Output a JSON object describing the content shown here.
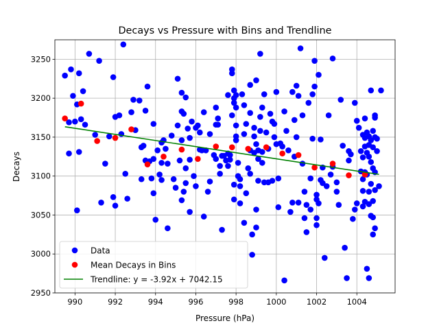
{
  "chart_data": {
    "type": "scatter",
    "title": "Decays vs Pressure with Bins and Trendline",
    "xlabel": "Pressure (hPa)",
    "ylabel": "Decays",
    "xlim": [
      989.0,
      1005.9
    ],
    "ylim": [
      2950,
      3275
    ],
    "x_ticks": [
      990,
      992,
      994,
      996,
      998,
      1000,
      1002,
      1004
    ],
    "y_ticks": [
      2950,
      3000,
      3050,
      3100,
      3150,
      3200,
      3250
    ],
    "grid": true,
    "legend_position": "lower-left",
    "legend": [
      "Data",
      "Mean Decays in Bins",
      "Trendline: y = -3.92x + 7042.15"
    ],
    "colors": {
      "data": "#0000ff",
      "bins": "#ff0000",
      "trend": "#008000"
    },
    "series": [
      {
        "name": "Data",
        "kind": "scatter",
        "points": [
          [
            989.5,
            3229
          ],
          [
            989.7,
            3169
          ],
          [
            989.7,
            3129
          ],
          [
            989.8,
            3237
          ],
          [
            989.9,
            3203
          ],
          [
            990.0,
            3170
          ],
          [
            990.1,
            3056
          ],
          [
            990.1,
            3192
          ],
          [
            990.2,
            3131
          ],
          [
            990.2,
            3232
          ],
          [
            990.3,
            3173
          ],
          [
            990.4,
            3209
          ],
          [
            990.5,
            3166
          ],
          [
            990.7,
            3257
          ],
          [
            991.0,
            3153
          ],
          [
            991.2,
            3248
          ],
          [
            991.3,
            3066
          ],
          [
            991.5,
            3116
          ],
          [
            991.7,
            3151
          ],
          [
            991.9,
            3227
          ],
          [
            991.9,
            3073
          ],
          [
            992.0,
            3176
          ],
          [
            992.0,
            3062
          ],
          [
            992.2,
            3178
          ],
          [
            992.3,
            3154
          ],
          [
            992.4,
            3269
          ],
          [
            992.5,
            3103
          ],
          [
            992.6,
            3071
          ],
          [
            992.8,
            3182
          ],
          [
            992.9,
            3198
          ],
          [
            993.0,
            3159
          ],
          [
            993.2,
            3197
          ],
          [
            993.3,
            3096
          ],
          [
            993.3,
            3137
          ],
          [
            993.4,
            3139
          ],
          [
            993.5,
            3120
          ],
          [
            993.5,
            3184
          ],
          [
            993.6,
            3215
          ],
          [
            993.7,
            3119
          ],
          [
            993.8,
            3097
          ],
          [
            993.9,
            3122
          ],
          [
            993.9,
            3167
          ],
          [
            993.9,
            3078
          ],
          [
            994.0,
            3044
          ],
          [
            994.1,
            3133
          ],
          [
            994.2,
            3102
          ],
          [
            994.3,
            3095
          ],
          [
            994.3,
            3117
          ],
          [
            994.3,
            3143
          ],
          [
            994.4,
            3146
          ],
          [
            994.5,
            3135
          ],
          [
            994.6,
            3116
          ],
          [
            994.6,
            3033
          ],
          [
            994.8,
            3152
          ],
          [
            994.9,
            3096
          ],
          [
            995.0,
            3085
          ],
          [
            995.1,
            3225
          ],
          [
            995.1,
            3165
          ],
          [
            995.2,
            3120
          ],
          [
            995.3,
            3207
          ],
          [
            995.3,
            3146
          ],
          [
            995.3,
            3183
          ],
          [
            995.3,
            3069
          ],
          [
            995.4,
            3080
          ],
          [
            995.4,
            3180
          ],
          [
            995.5,
            3201
          ],
          [
            995.5,
            3110
          ],
          [
            995.5,
            3091
          ],
          [
            995.6,
            3161
          ],
          [
            995.7,
            3054
          ],
          [
            995.7,
            3121
          ],
          [
            995.7,
            3149
          ],
          [
            995.8,
            3170
          ],
          [
            995.9,
            3100
          ],
          [
            996.0,
            3087
          ],
          [
            996.0,
            3162
          ],
          [
            996.1,
            3165
          ],
          [
            996.2,
            3156
          ],
          [
            996.2,
            3134
          ],
          [
            996.3,
            3133
          ],
          [
            996.4,
            3048
          ],
          [
            996.4,
            3182
          ],
          [
            996.5,
            3133
          ],
          [
            996.6,
            3080
          ],
          [
            996.7,
            3154
          ],
          [
            996.7,
            3093
          ],
          [
            996.9,
            3127
          ],
          [
            997.0,
            3122
          ],
          [
            997.0,
            3166
          ],
          [
            997.0,
            3188
          ],
          [
            997.1,
            3174
          ],
          [
            997.1,
            3166
          ],
          [
            997.2,
            3113
          ],
          [
            997.2,
            3103
          ],
          [
            997.3,
            3126
          ],
          [
            997.3,
            3031
          ],
          [
            997.4,
            3126
          ],
          [
            997.5,
            3120
          ],
          [
            997.6,
            3113
          ],
          [
            997.6,
            3204
          ],
          [
            997.6,
            3129
          ],
          [
            997.7,
            3121
          ],
          [
            997.7,
            3127
          ],
          [
            997.8,
            3178
          ],
          [
            997.8,
            3237
          ],
          [
            997.8,
            3232
          ],
          [
            997.9,
            3210
          ],
          [
            997.9,
            3200
          ],
          [
            997.9,
            3194
          ],
          [
            997.9,
            3089
          ],
          [
            997.9,
            3070
          ],
          [
            998.0,
            3146
          ],
          [
            998.0,
            3204
          ],
          [
            998.0,
            3188
          ],
          [
            998.0,
            3165
          ],
          [
            998.0,
            3151
          ],
          [
            998.1,
            3117
          ],
          [
            998.1,
            3100
          ],
          [
            998.2,
            3087
          ],
          [
            998.2,
            3096
          ],
          [
            998.2,
            3065
          ],
          [
            998.3,
            3205
          ],
          [
            998.4,
            3191
          ],
          [
            998.4,
            3154
          ],
          [
            998.4,
            3040
          ],
          [
            998.5,
            3078
          ],
          [
            998.5,
            3167
          ],
          [
            998.6,
            3110
          ],
          [
            998.7,
            3133
          ],
          [
            998.7,
            3217
          ],
          [
            998.7,
            3181
          ],
          [
            998.7,
            3103
          ],
          [
            998.8,
            3025
          ],
          [
            998.8,
            2999
          ],
          [
            998.9,
            3151
          ],
          [
            998.9,
            3130
          ],
          [
            998.9,
            3162
          ],
          [
            999.0,
            3223
          ],
          [
            999.0,
            3141
          ],
          [
            999.0,
            3057
          ],
          [
            999.0,
            3034
          ],
          [
            999.1,
            3133
          ],
          [
            999.1,
            3122
          ],
          [
            999.1,
            3094
          ],
          [
            999.2,
            3176
          ],
          [
            999.2,
            3257
          ],
          [
            999.2,
            3158
          ],
          [
            999.3,
            3188
          ],
          [
            999.3,
            3131
          ],
          [
            999.3,
            3117
          ],
          [
            999.4,
            3205
          ],
          [
            999.4,
            3092
          ],
          [
            999.5,
            3156
          ],
          [
            999.6,
            3135
          ],
          [
            999.6,
            3092
          ],
          [
            999.7,
            3180
          ],
          [
            999.8,
            3170
          ],
          [
            999.8,
            3094
          ],
          [
            999.9,
            3150
          ],
          [
            999.9,
            3167
          ],
          [
            1000.0,
            3208
          ],
          [
            1000.0,
            3141
          ],
          [
            1000.1,
            3097
          ],
          [
            1000.1,
            3060
          ],
          [
            1000.2,
            3142
          ],
          [
            1000.3,
            3138
          ],
          [
            1000.4,
            2966
          ],
          [
            1000.4,
            3183
          ],
          [
            1000.5,
            3158
          ],
          [
            1000.6,
            3133
          ],
          [
            1000.7,
            3054
          ],
          [
            1000.8,
            3066
          ],
          [
            1000.8,
            3208
          ],
          [
            1000.9,
            3172
          ],
          [
            1000.9,
            3125
          ],
          [
            1001.0,
            3150
          ],
          [
            1001.0,
            3216
          ],
          [
            1001.1,
            3066
          ],
          [
            1001.1,
            3203
          ],
          [
            1001.2,
            3264
          ],
          [
            1001.3,
            3178
          ],
          [
            1001.3,
            3116
          ],
          [
            1001.4,
            3080
          ],
          [
            1001.4,
            3046
          ],
          [
            1001.5,
            3063
          ],
          [
            1001.5,
            3028
          ],
          [
            1001.6,
            3194
          ],
          [
            1001.7,
            3057
          ],
          [
            1001.7,
            3097
          ],
          [
            1001.8,
            3148
          ],
          [
            1001.8,
            3205
          ],
          [
            1001.9,
            3215
          ],
          [
            1001.9,
            3248
          ],
          [
            1002.0,
            3070
          ],
          [
            1002.0,
            3037
          ],
          [
            1002.0,
            3076
          ],
          [
            1002.0,
            3046
          ],
          [
            1002.1,
            3230
          ],
          [
            1002.1,
            3065
          ],
          [
            1002.2,
            3147
          ],
          [
            1002.2,
            3095
          ],
          [
            1002.3,
            3111
          ],
          [
            1002.3,
            3091
          ],
          [
            1002.4,
            2995
          ],
          [
            1002.5,
            3087
          ],
          [
            1002.6,
            3178
          ],
          [
            1002.7,
            3102
          ],
          [
            1002.8,
            3251
          ],
          [
            1002.8,
            3112
          ],
          [
            1003.0,
            3092
          ],
          [
            1003.0,
            3080
          ],
          [
            1003.1,
            3063
          ],
          [
            1003.2,
            3198
          ],
          [
            1003.3,
            3139
          ],
          [
            1003.4,
            3008
          ],
          [
            1003.5,
            2969
          ],
          [
            1003.6,
            3120
          ],
          [
            1003.6,
            3132
          ],
          [
            1003.7,
            3128
          ],
          [
            1003.8,
            3045
          ],
          [
            1003.9,
            3057
          ],
          [
            1003.9,
            3194
          ],
          [
            1004.0,
            3065
          ],
          [
            1004.0,
            3171
          ],
          [
            1004.1,
            3162
          ],
          [
            1004.2,
            3106
          ],
          [
            1004.2,
            3132
          ],
          [
            1004.3,
            3153
          ],
          [
            1004.3,
            3124
          ],
          [
            1004.3,
            3096
          ],
          [
            1004.3,
            3081
          ],
          [
            1004.3,
            3061
          ],
          [
            1004.4,
            3174
          ],
          [
            1004.4,
            3149
          ],
          [
            1004.4,
            3138
          ],
          [
            1004.4,
            3105
          ],
          [
            1004.4,
            3067
          ],
          [
            1004.5,
            2981
          ],
          [
            1004.5,
            3156
          ],
          [
            1004.5,
            3130
          ],
          [
            1004.5,
            3102
          ],
          [
            1004.6,
            3151
          ],
          [
            1004.6,
            3140
          ],
          [
            1004.6,
            3125
          ],
          [
            1004.6,
            3080
          ],
          [
            1004.6,
            3064
          ],
          [
            1004.6,
            2969
          ],
          [
            1004.7,
            3210
          ],
          [
            1004.7,
            3146
          ],
          [
            1004.7,
            3118
          ],
          [
            1004.7,
            3090
          ],
          [
            1004.7,
            3049
          ],
          [
            1004.8,
            3025
          ],
          [
            1004.8,
            3158
          ],
          [
            1004.8,
            3137
          ],
          [
            1004.8,
            3110
          ],
          [
            1004.8,
            3068
          ],
          [
            1004.8,
            3047
          ],
          [
            1004.9,
            3178
          ],
          [
            1004.9,
            3175
          ],
          [
            1004.9,
            3150
          ],
          [
            1004.9,
            3105
          ],
          [
            1004.9,
            3082
          ],
          [
            1004.9,
            3033
          ],
          [
            1005.0,
            3148
          ],
          [
            1005.0,
            3132
          ],
          [
            1005.1,
            3087
          ],
          [
            1005.2,
            3210
          ]
        ]
      },
      {
        "name": "Mean Decays in Bins",
        "kind": "scatter",
        "points": [
          [
            989.5,
            3174
          ],
          [
            990.3,
            3193
          ],
          [
            991.1,
            3145
          ],
          [
            992.0,
            3149
          ],
          [
            992.8,
            3160
          ],
          [
            993.6,
            3115
          ],
          [
            994.4,
            3125
          ],
          [
            995.3,
            3134
          ],
          [
            996.1,
            3122
          ],
          [
            997.0,
            3138
          ],
          [
            997.8,
            3137
          ],
          [
            998.6,
            3135
          ],
          [
            999.5,
            3137
          ],
          [
            1000.3,
            3129
          ],
          [
            1001.1,
            3127
          ],
          [
            1001.9,
            3111
          ],
          [
            1002.8,
            3116
          ],
          [
            1003.6,
            3101
          ],
          [
            1004.4,
            3102
          ]
        ]
      },
      {
        "name": "Trendline: y = -3.92x + 7042.15",
        "kind": "line",
        "slope": -3.92,
        "intercept": 7042.15,
        "x_range": [
          989.5,
          1005.1
        ]
      }
    ]
  }
}
